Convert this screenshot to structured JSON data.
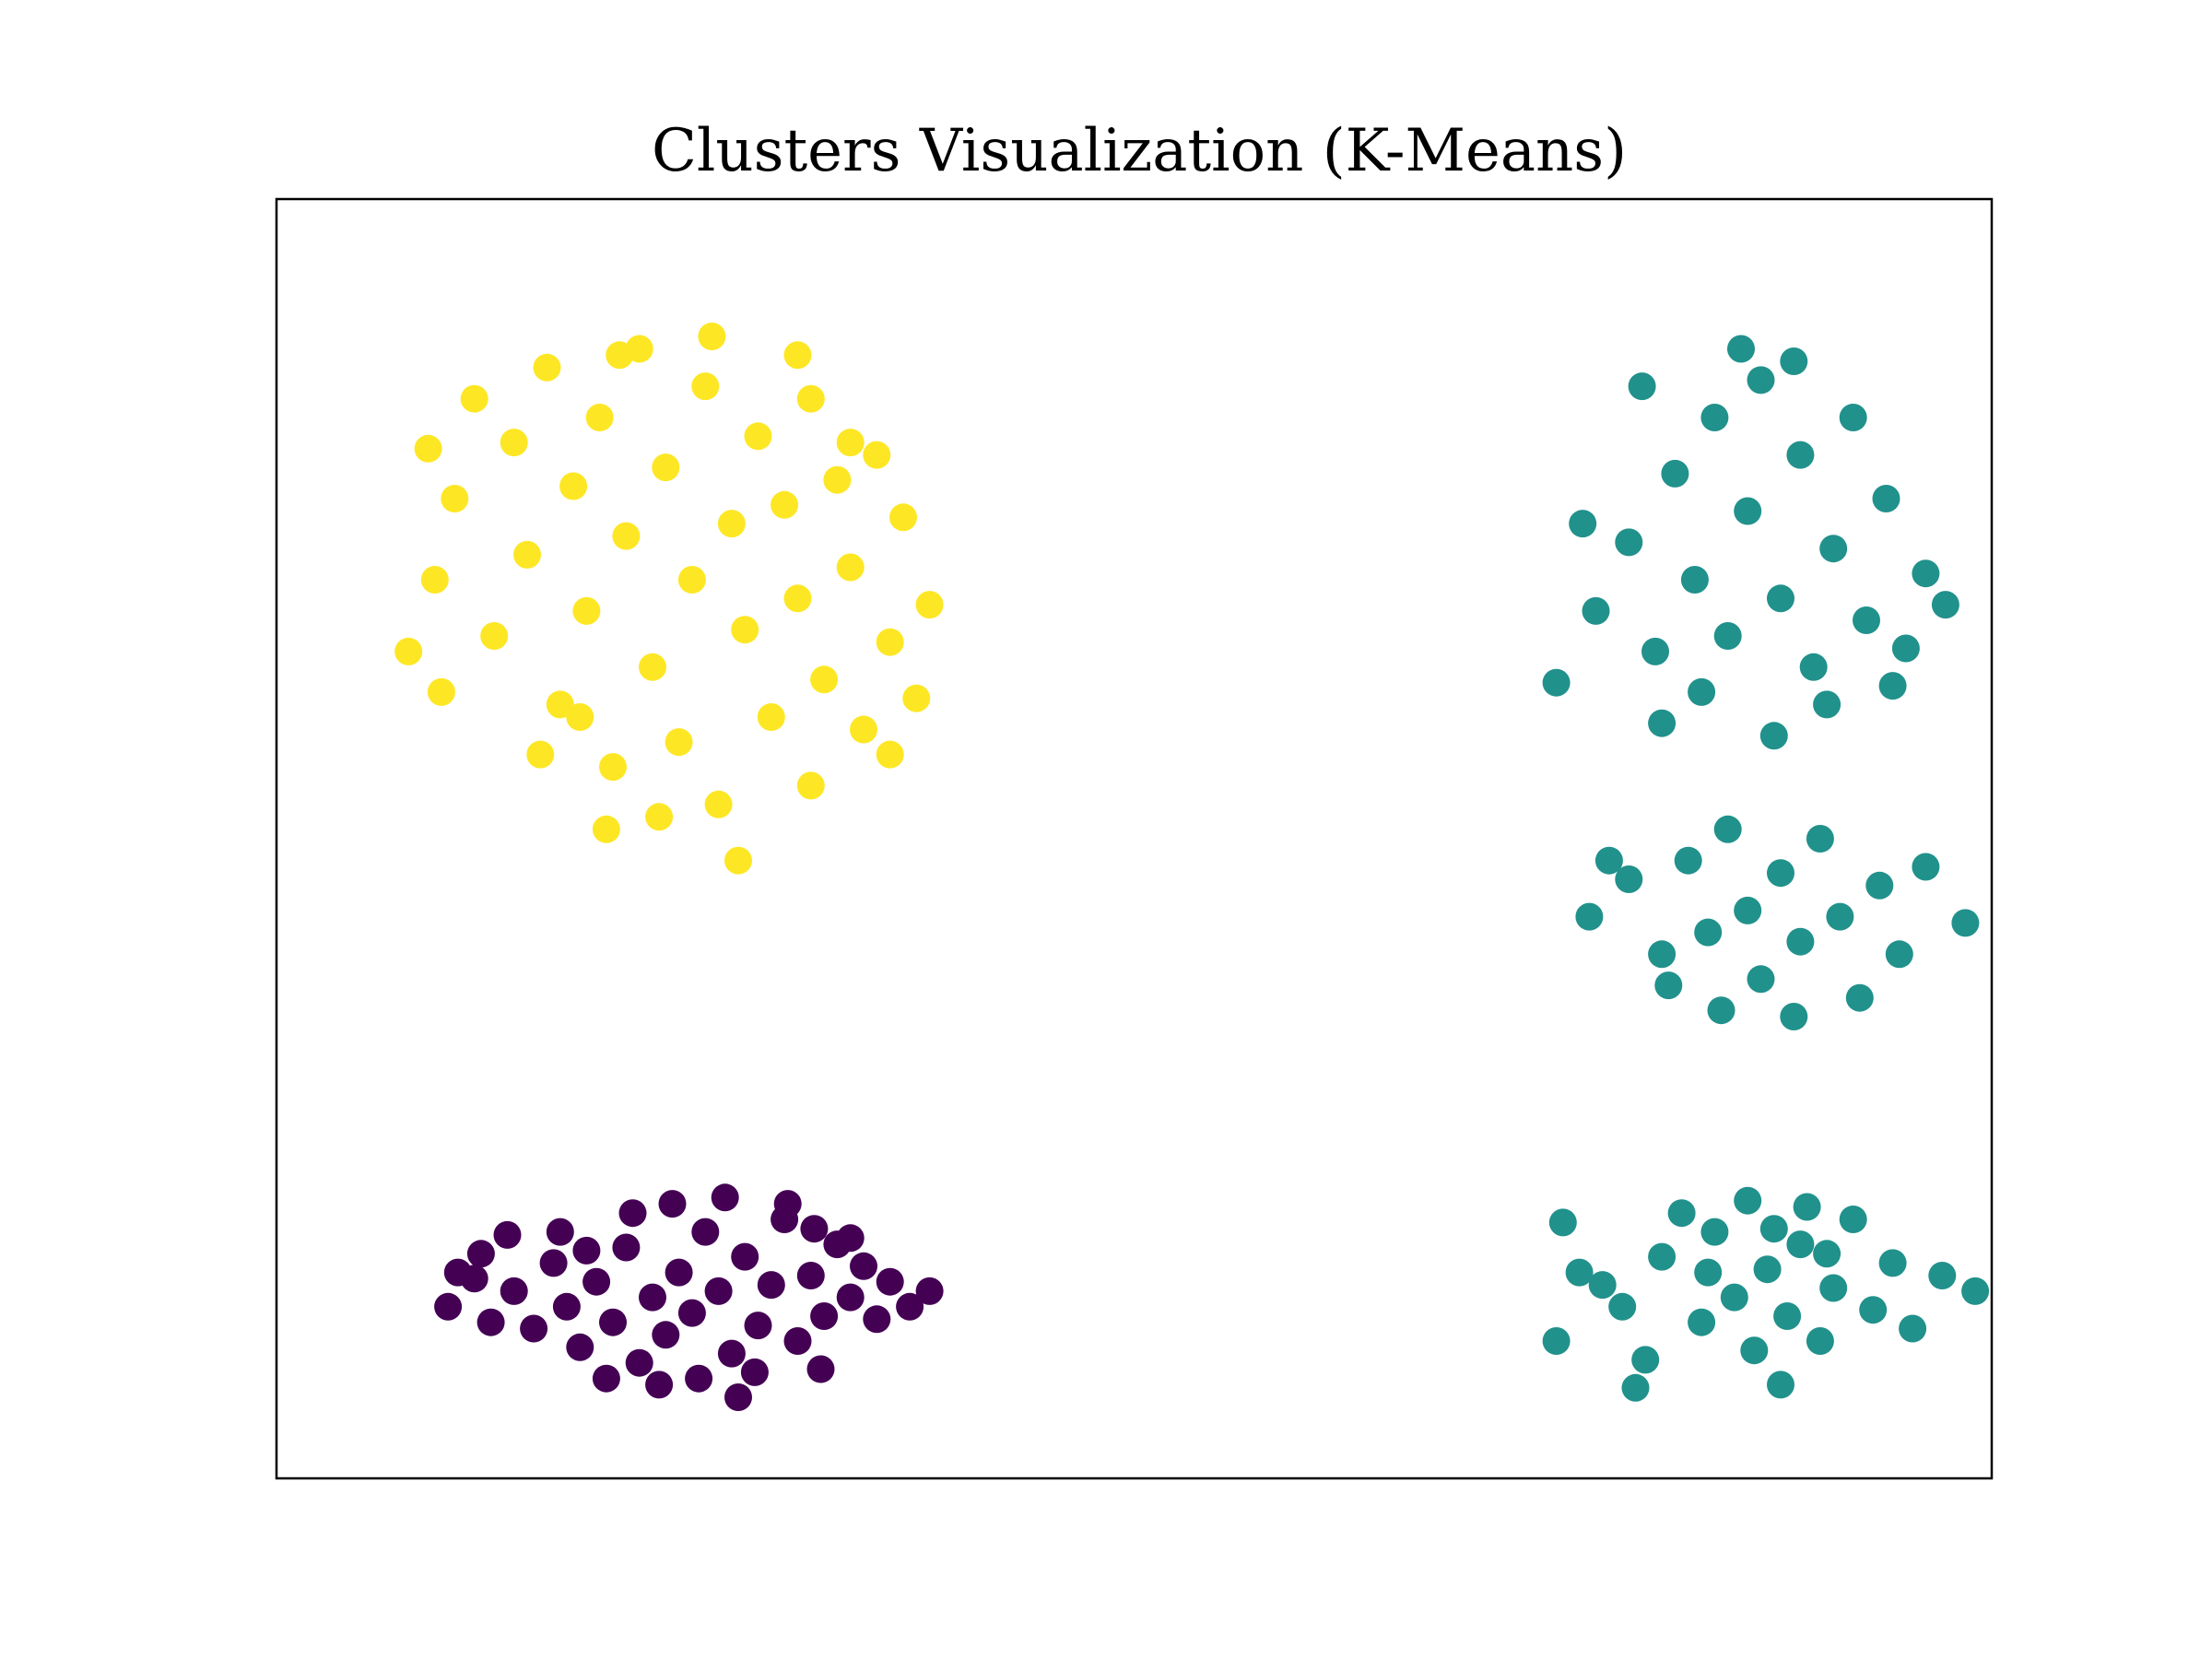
{
  "chart_data": {
    "type": "scatter",
    "title": "Clusters Visualization (K-Means)",
    "xlabel": "",
    "ylabel": "",
    "xlim": [
      -2.6,
      2.6
    ],
    "ylim": [
      -2.1,
      2.0
    ],
    "grid": false,
    "axes_ticks_visible": false,
    "legend": "none",
    "series": [
      {
        "cluster": 0,
        "color": "#440154",
        "points": [
          [
            -2.08,
            -1.55
          ],
          [
            -2.0,
            -1.46
          ],
          [
            -1.95,
            -1.6
          ],
          [
            -1.88,
            -1.5
          ],
          [
            -1.82,
            -1.62
          ],
          [
            -1.76,
            -1.41
          ],
          [
            -1.72,
            -1.55
          ],
          [
            -1.68,
            -1.68
          ],
          [
            -1.63,
            -1.47
          ],
          [
            -1.58,
            -1.6
          ],
          [
            -1.54,
            -1.36
          ],
          [
            -1.5,
            -1.73
          ],
          [
            -1.46,
            -1.52
          ],
          [
            -1.42,
            -1.64
          ],
          [
            -1.38,
            -1.44
          ],
          [
            -1.34,
            -1.57
          ],
          [
            -1.3,
            -1.31
          ],
          [
            -1.26,
            -1.5
          ],
          [
            -1.22,
            -1.7
          ],
          [
            -1.18,
            -1.39
          ],
          [
            -1.14,
            -1.61
          ],
          [
            -1.1,
            -1.48
          ],
          [
            -1.06,
            -1.27
          ],
          [
            -1.02,
            -1.66
          ],
          [
            -0.98,
            -1.45
          ],
          [
            -0.94,
            -1.58
          ],
          [
            -0.9,
            -1.35
          ],
          [
            -0.86,
            -1.52
          ],
          [
            -0.82,
            -1.42
          ],
          [
            -0.78,
            -1.59
          ],
          [
            -0.74,
            -1.47
          ],
          [
            -1.9,
            -1.32
          ],
          [
            -1.44,
            -1.8
          ],
          [
            -1.2,
            -1.84
          ],
          [
            -0.95,
            -1.75
          ],
          [
            -0.68,
            -1.55
          ],
          [
            -0.62,
            -1.5
          ],
          [
            -1.52,
            -1.25
          ],
          [
            -1.24,
            -1.2
          ],
          [
            -1.6,
            -1.78
          ],
          [
            -1.74,
            -1.31
          ],
          [
            -1.05,
            -1.22
          ],
          [
            -1.32,
            -1.78
          ],
          [
            -1.15,
            -1.76
          ],
          [
            -0.86,
            -1.33
          ],
          [
            -0.97,
            -1.3
          ],
          [
            -1.4,
            -1.22
          ],
          [
            -2.05,
            -1.44
          ],
          [
            -1.98,
            -1.38
          ],
          [
            -1.66,
            -1.37
          ]
        ]
      },
      {
        "cluster": 1,
        "color": "#21918c",
        "points": [
          [
            1.28,
            -1.66
          ],
          [
            1.42,
            -1.48
          ],
          [
            1.55,
            -1.72
          ],
          [
            1.6,
            -1.39
          ],
          [
            1.72,
            -1.6
          ],
          [
            1.76,
            -1.31
          ],
          [
            1.82,
            -1.52
          ],
          [
            1.88,
            -1.69
          ],
          [
            1.92,
            -1.43
          ],
          [
            1.98,
            -1.58
          ],
          [
            2.02,
            -1.35
          ],
          [
            2.08,
            -1.66
          ],
          [
            2.12,
            -1.49
          ],
          [
            2.18,
            -1.27
          ],
          [
            2.24,
            -1.56
          ],
          [
            2.3,
            -1.41
          ],
          [
            2.36,
            -1.62
          ],
          [
            2.45,
            -1.45
          ],
          [
            2.55,
            -1.5
          ],
          [
            1.66,
            -1.25
          ],
          [
            1.86,
            -1.21
          ],
          [
            2.04,
            -1.23
          ],
          [
            1.52,
            -1.81
          ],
          [
            1.96,
            -1.8
          ],
          [
            1.48,
            -1.55
          ],
          [
            1.35,
            -1.44
          ],
          [
            1.3,
            -1.28
          ],
          [
            1.74,
            -1.44
          ],
          [
            1.94,
            -1.3
          ],
          [
            2.1,
            -1.38
          ],
          [
            1.38,
            -0.3
          ],
          [
            1.5,
            -0.18
          ],
          [
            1.6,
            -0.42
          ],
          [
            1.68,
            -0.12
          ],
          [
            1.74,
            -0.35
          ],
          [
            1.8,
            -0.02
          ],
          [
            1.86,
            -0.28
          ],
          [
            1.9,
            -0.5
          ],
          [
            1.96,
            -0.16
          ],
          [
            2.02,
            -0.38
          ],
          [
            2.08,
            -0.05
          ],
          [
            2.14,
            -0.3
          ],
          [
            2.2,
            -0.56
          ],
          [
            2.26,
            -0.2
          ],
          [
            2.32,
            -0.42
          ],
          [
            2.4,
            -0.14
          ],
          [
            2.52,
            -0.32
          ],
          [
            1.78,
            -0.6
          ],
          [
            2.0,
            -0.62
          ],
          [
            1.62,
            -0.52
          ],
          [
            1.44,
            -0.12
          ],
          [
            1.28,
            0.45
          ],
          [
            1.4,
            0.68
          ],
          [
            1.5,
            0.9
          ],
          [
            1.58,
            0.55
          ],
          [
            1.64,
            1.12
          ],
          [
            1.7,
            0.78
          ],
          [
            1.76,
            1.3
          ],
          [
            1.8,
            0.6
          ],
          [
            1.86,
            1.0
          ],
          [
            1.9,
            1.42
          ],
          [
            1.96,
            0.72
          ],
          [
            2.02,
            1.18
          ],
          [
            2.06,
            0.5
          ],
          [
            2.12,
            0.88
          ],
          [
            2.18,
            1.3
          ],
          [
            2.22,
            0.65
          ],
          [
            2.28,
            1.04
          ],
          [
            2.34,
            0.56
          ],
          [
            2.4,
            0.8
          ],
          [
            2.46,
            0.7
          ],
          [
            1.84,
            1.52
          ],
          [
            2.0,
            1.48
          ],
          [
            1.54,
            1.4
          ],
          [
            1.72,
            0.42
          ],
          [
            2.1,
            0.38
          ],
          [
            1.36,
            0.96
          ],
          [
            2.3,
            0.44
          ],
          [
            1.6,
            0.32
          ],
          [
            1.94,
            0.28
          ]
        ]
      },
      {
        "cluster": 2,
        "color": "#fde725",
        "points": [
          [
            -2.2,
            0.55
          ],
          [
            -2.12,
            0.78
          ],
          [
            -2.06,
            1.04
          ],
          [
            -2.0,
            1.36
          ],
          [
            -1.94,
            0.6
          ],
          [
            -1.88,
            1.22
          ],
          [
            -1.84,
            0.86
          ],
          [
            -1.78,
            1.46
          ],
          [
            -1.74,
            0.38
          ],
          [
            -1.7,
            1.08
          ],
          [
            -1.66,
            0.68
          ],
          [
            -1.62,
            1.3
          ],
          [
            -1.58,
            0.18
          ],
          [
            -1.54,
            0.92
          ],
          [
            -1.5,
            1.52
          ],
          [
            -1.46,
            0.5
          ],
          [
            -1.42,
            1.14
          ],
          [
            -1.38,
            0.26
          ],
          [
            -1.34,
            0.78
          ],
          [
            -1.3,
            1.4
          ],
          [
            -1.26,
            0.06
          ],
          [
            -1.22,
            0.96
          ],
          [
            -1.18,
            0.62
          ],
          [
            -1.14,
            1.24
          ],
          [
            -1.1,
            0.34
          ],
          [
            -1.06,
            1.02
          ],
          [
            -1.02,
            0.72
          ],
          [
            -0.98,
            1.36
          ],
          [
            -0.94,
            0.46
          ],
          [
            -0.9,
            1.1
          ],
          [
            -0.86,
            0.82
          ],
          [
            -0.82,
            0.3
          ],
          [
            -0.78,
            1.18
          ],
          [
            -0.74,
            0.58
          ],
          [
            -0.7,
            0.98
          ],
          [
            -0.66,
            0.4
          ],
          [
            -0.62,
            0.7
          ],
          [
            -1.56,
            1.5
          ],
          [
            -1.28,
            1.56
          ],
          [
            -1.02,
            1.5
          ],
          [
            -0.86,
            1.22
          ],
          [
            -1.44,
            0.02
          ],
          [
            -1.2,
            -0.12
          ],
          [
            -0.98,
            0.12
          ],
          [
            -0.74,
            0.22
          ],
          [
            -2.1,
            0.42
          ],
          [
            -2.14,
            1.2
          ],
          [
            -1.8,
            0.22
          ],
          [
            -1.6,
            -0.02
          ],
          [
            -1.68,
            0.34
          ]
        ]
      }
    ]
  }
}
